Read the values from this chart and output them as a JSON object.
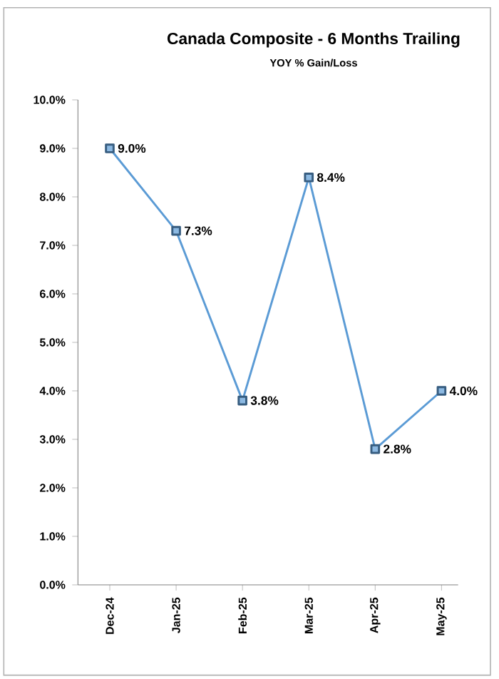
{
  "chart_data": {
    "type": "line",
    "title": "Canada Composite - 6 Months Trailing",
    "subtitle": "YOY % Gain/Loss",
    "categories": [
      "Dec-24",
      "Jan-25",
      "Feb-25",
      "Mar-25",
      "Apr-25",
      "May-25"
    ],
    "series": [
      {
        "color": "#5b9bd5",
        "values": [
          9.0,
          7.3,
          3.8,
          8.4,
          2.8,
          4.0
        ],
        "value_labels": [
          "9.0%",
          "7.3%",
          "3.8%",
          "8.4%",
          "2.8%",
          "4.0%"
        ]
      }
    ],
    "ylim": [
      0,
      10
    ],
    "yticks": [
      {
        "value": 0,
        "label": "0.0%"
      },
      {
        "value": 1,
        "label": "1.0%"
      },
      {
        "value": 2,
        "label": "2.0%"
      },
      {
        "value": 3,
        "label": "3.0%"
      },
      {
        "value": 4,
        "label": "4.0%"
      },
      {
        "value": 5,
        "label": "5.0%"
      },
      {
        "value": 6,
        "label": "6.0%"
      },
      {
        "value": 7,
        "label": "7.0%"
      },
      {
        "value": 8,
        "label": "8.0%"
      },
      {
        "value": 9,
        "label": "9.0%"
      },
      {
        "value": 10,
        "label": "10.0%"
      }
    ],
    "marker": "square",
    "line_style": "solid",
    "grid": false
  }
}
